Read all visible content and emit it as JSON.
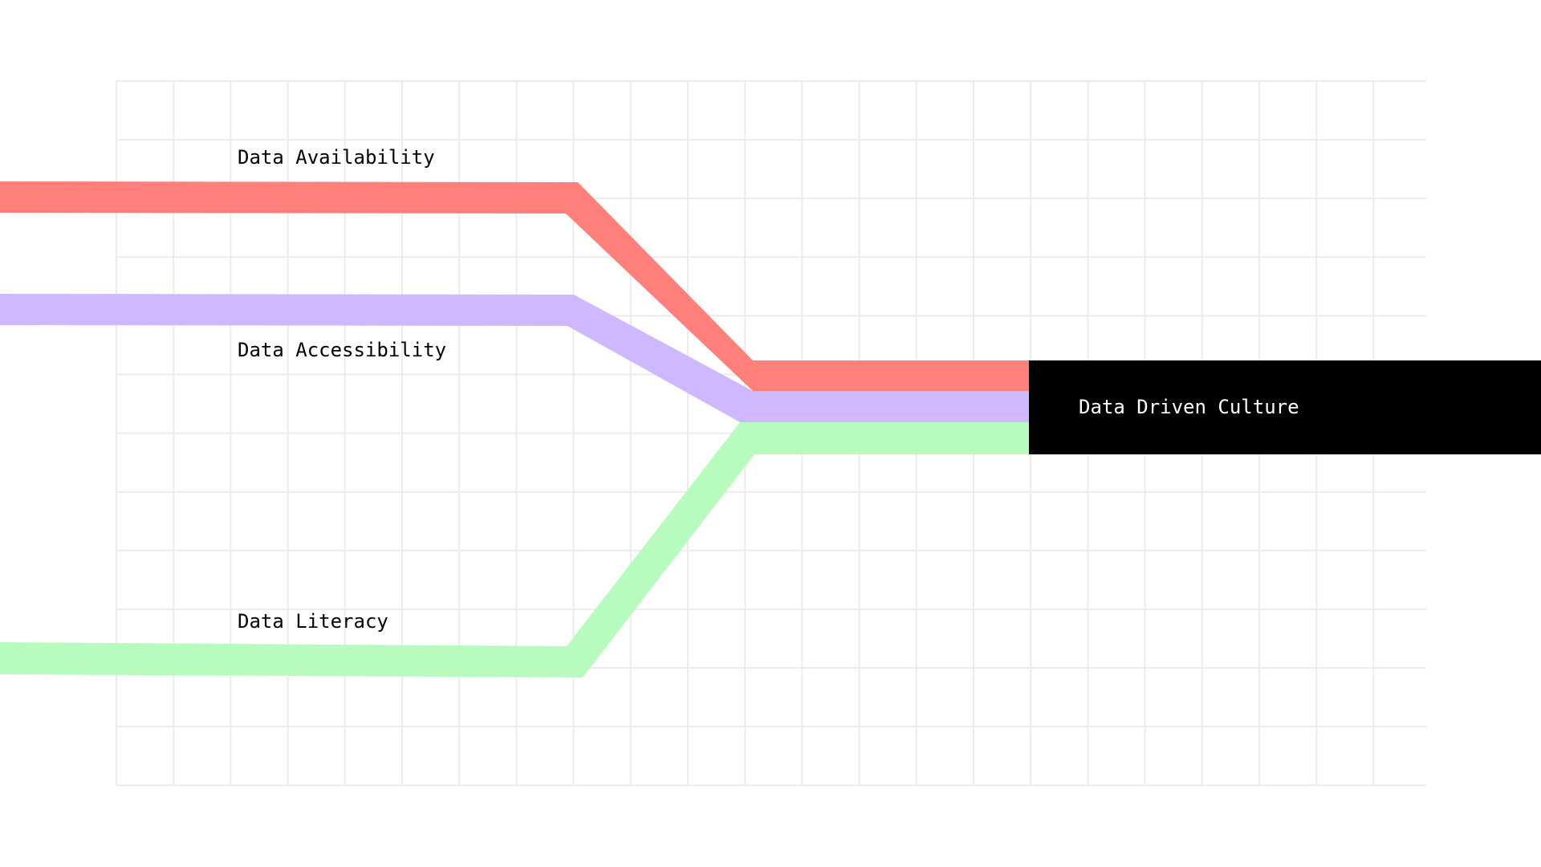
{
  "streams": [
    {
      "id": "availability",
      "label": "Data Availability",
      "color": "#ff7f7a"
    },
    {
      "id": "accessibility",
      "label": "Data Accessibility",
      "color": "#cfb8ff"
    },
    {
      "id": "literacy",
      "label": "Data Literacy",
      "color": "#b8fbbe"
    }
  ],
  "result": {
    "label": "Data Driven Culture",
    "color": "#000000"
  },
  "grid": {
    "color": "#ececec"
  }
}
